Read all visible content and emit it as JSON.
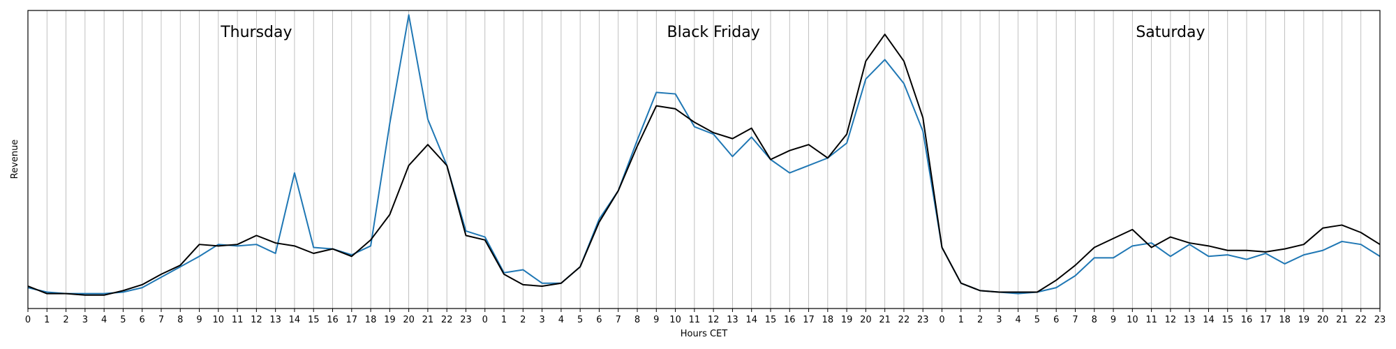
{
  "chart_data": {
    "type": "line",
    "title": "",
    "xlabel": "Hours CET",
    "ylabel": "Revenue",
    "ylim": [
      0,
      100
    ],
    "grid": "vertical",
    "x": [
      "0",
      "1",
      "2",
      "3",
      "4",
      "5",
      "6",
      "7",
      "8",
      "9",
      "10",
      "11",
      "12",
      "13",
      "14",
      "15",
      "16",
      "17",
      "18",
      "19",
      "20",
      "21",
      "22",
      "23",
      "0",
      "1",
      "2",
      "3",
      "4",
      "5",
      "6",
      "7",
      "8",
      "9",
      "10",
      "11",
      "12",
      "13",
      "14",
      "15",
      "16",
      "17",
      "18",
      "19",
      "20",
      "21",
      "22",
      "23",
      "0",
      "1",
      "2",
      "3",
      "4",
      "5",
      "6",
      "7",
      "8",
      "9",
      "10",
      "11",
      "12",
      "13",
      "14",
      "15",
      "16",
      "17",
      "18",
      "19",
      "20",
      "21",
      "22",
      "23"
    ],
    "annotations": [
      {
        "text": "Thursday",
        "x_index": 12
      },
      {
        "text": "Black Friday",
        "x_index": 36
      },
      {
        "text": "Saturday",
        "x_index": 60
      }
    ],
    "series": [
      {
        "color": "#1f77b4",
        "values": [
          7,
          5.5,
          5,
          5,
          5,
          5.5,
          7,
          10.5,
          14,
          17.5,
          21.5,
          21,
          21.5,
          18.5,
          45.5,
          20.5,
          20,
          18,
          21,
          62,
          98.5,
          63.5,
          48,
          26,
          24,
          12,
          13,
          8.5,
          8.5,
          14,
          30,
          39.5,
          56.5,
          72.5,
          72,
          61,
          58.5,
          51,
          57.5,
          50,
          45.5,
          48,
          50.5,
          55.5,
          77,
          83.5,
          75.5,
          59.5,
          20.5,
          8.5,
          6,
          5.5,
          5,
          5.5,
          7,
          11,
          17,
          17,
          21,
          22,
          17.5,
          21.5,
          17.5,
          18,
          16.5,
          18.5,
          15,
          18,
          19.5,
          22.5,
          21.5,
          17.5
        ]
      },
      {
        "color": "#000000",
        "values": [
          7.5,
          5,
          5,
          4.5,
          4.5,
          6,
          8,
          11.5,
          14.5,
          21.5,
          21,
          21.5,
          24.5,
          22,
          21,
          18.5,
          20,
          17.5,
          23,
          31.5,
          48,
          55,
          48,
          24.5,
          23,
          11.5,
          8,
          7.5,
          8.5,
          14,
          29,
          39.5,
          54.5,
          68,
          67,
          62.5,
          59,
          57,
          60.5,
          50,
          53,
          55,
          50.5,
          58.5,
          83,
          92,
          83,
          64,
          20.5,
          8.5,
          6,
          5.5,
          5.5,
          5.5,
          9.5,
          14.5,
          20.5,
          23.5,
          26.5,
          20.5,
          24,
          22,
          21,
          19.5,
          19.5,
          19,
          20,
          21.5,
          27,
          28,
          25.5,
          21.5
        ]
      }
    ]
  }
}
